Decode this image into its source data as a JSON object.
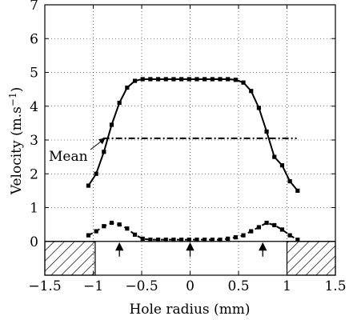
{
  "chart_data": {
    "type": "line",
    "xlabel": "Hole radius (mm)",
    "ylabel": "Velocity (m.s",
    "ylabel_unit_superscript": "−1",
    "ylabel_suffix": ")",
    "xlim": [
      -1.5,
      1.5
    ],
    "ylim": [
      -1,
      7
    ],
    "grid": true,
    "x_ticks": [
      -1.5,
      -1,
      -0.5,
      0,
      0.5,
      1,
      1.5
    ],
    "x_tick_labels": [
      "−1.5",
      "−1",
      "−0.5",
      "0",
      "0.5",
      "1",
      "1.5"
    ],
    "y_ticks": [
      0,
      1,
      2,
      3,
      4,
      5,
      6,
      7
    ],
    "y_tick_labels": [
      "0",
      "1",
      "2",
      "3",
      "4",
      "5",
      "6",
      "7"
    ],
    "series": [
      {
        "style": "solid-square-markers",
        "points": [
          [
            -1.05,
            1.65
          ],
          [
            -0.97,
            2.0
          ],
          [
            -0.89,
            2.65
          ],
          [
            -0.81,
            3.45
          ],
          [
            -0.73,
            4.1
          ],
          [
            -0.65,
            4.55
          ],
          [
            -0.57,
            4.75
          ],
          [
            -0.49,
            4.8
          ],
          [
            -0.41,
            4.8
          ],
          [
            -0.33,
            4.8
          ],
          [
            -0.25,
            4.8
          ],
          [
            -0.17,
            4.8
          ],
          [
            -0.09,
            4.8
          ],
          [
            -0.01,
            4.8
          ],
          [
            0.07,
            4.8
          ],
          [
            0.15,
            4.8
          ],
          [
            0.23,
            4.8
          ],
          [
            0.31,
            4.8
          ],
          [
            0.39,
            4.8
          ],
          [
            0.47,
            4.78
          ],
          [
            0.55,
            4.7
          ],
          [
            0.63,
            4.45
          ],
          [
            0.71,
            3.95
          ],
          [
            0.79,
            3.25
          ],
          [
            0.87,
            2.5
          ],
          [
            0.95,
            2.25
          ],
          [
            1.03,
            1.78
          ],
          [
            1.11,
            1.5
          ]
        ]
      },
      {
        "style": "dashed-square-markers",
        "points": [
          [
            -1.05,
            0.18
          ],
          [
            -0.97,
            0.3
          ],
          [
            -0.89,
            0.45
          ],
          [
            -0.81,
            0.55
          ],
          [
            -0.73,
            0.5
          ],
          [
            -0.65,
            0.38
          ],
          [
            -0.57,
            0.2
          ],
          [
            -0.49,
            0.08
          ],
          [
            -0.41,
            0.05
          ],
          [
            -0.33,
            0.05
          ],
          [
            -0.25,
            0.05
          ],
          [
            -0.17,
            0.05
          ],
          [
            -0.09,
            0.05
          ],
          [
            -0.01,
            0.05
          ],
          [
            0.07,
            0.05
          ],
          [
            0.15,
            0.05
          ],
          [
            0.23,
            0.05
          ],
          [
            0.31,
            0.05
          ],
          [
            0.39,
            0.08
          ],
          [
            0.47,
            0.12
          ],
          [
            0.55,
            0.18
          ],
          [
            0.63,
            0.3
          ],
          [
            0.71,
            0.42
          ],
          [
            0.79,
            0.55
          ],
          [
            0.87,
            0.48
          ],
          [
            0.95,
            0.35
          ],
          [
            1.03,
            0.18
          ],
          [
            1.11,
            0.05
          ]
        ]
      },
      {
        "style": "dash-dot",
        "name": "Mean",
        "points": [
          [
            -0.9,
            3.05
          ],
          [
            1.1,
            3.05
          ]
        ]
      }
    ],
    "annotations": [
      {
        "text": "Mean",
        "target": [
          -0.9,
          3.05
        ]
      }
    ],
    "upward_arrows_x": [
      -0.73,
      0.0,
      0.75
    ],
    "wall_hatch_regions": [
      [
        -1.5,
        -0.98
      ],
      [
        1.0,
        1.5
      ]
    ],
    "wall_y_range": [
      -1,
      0
    ],
    "wall_top_line_y": 0
  }
}
